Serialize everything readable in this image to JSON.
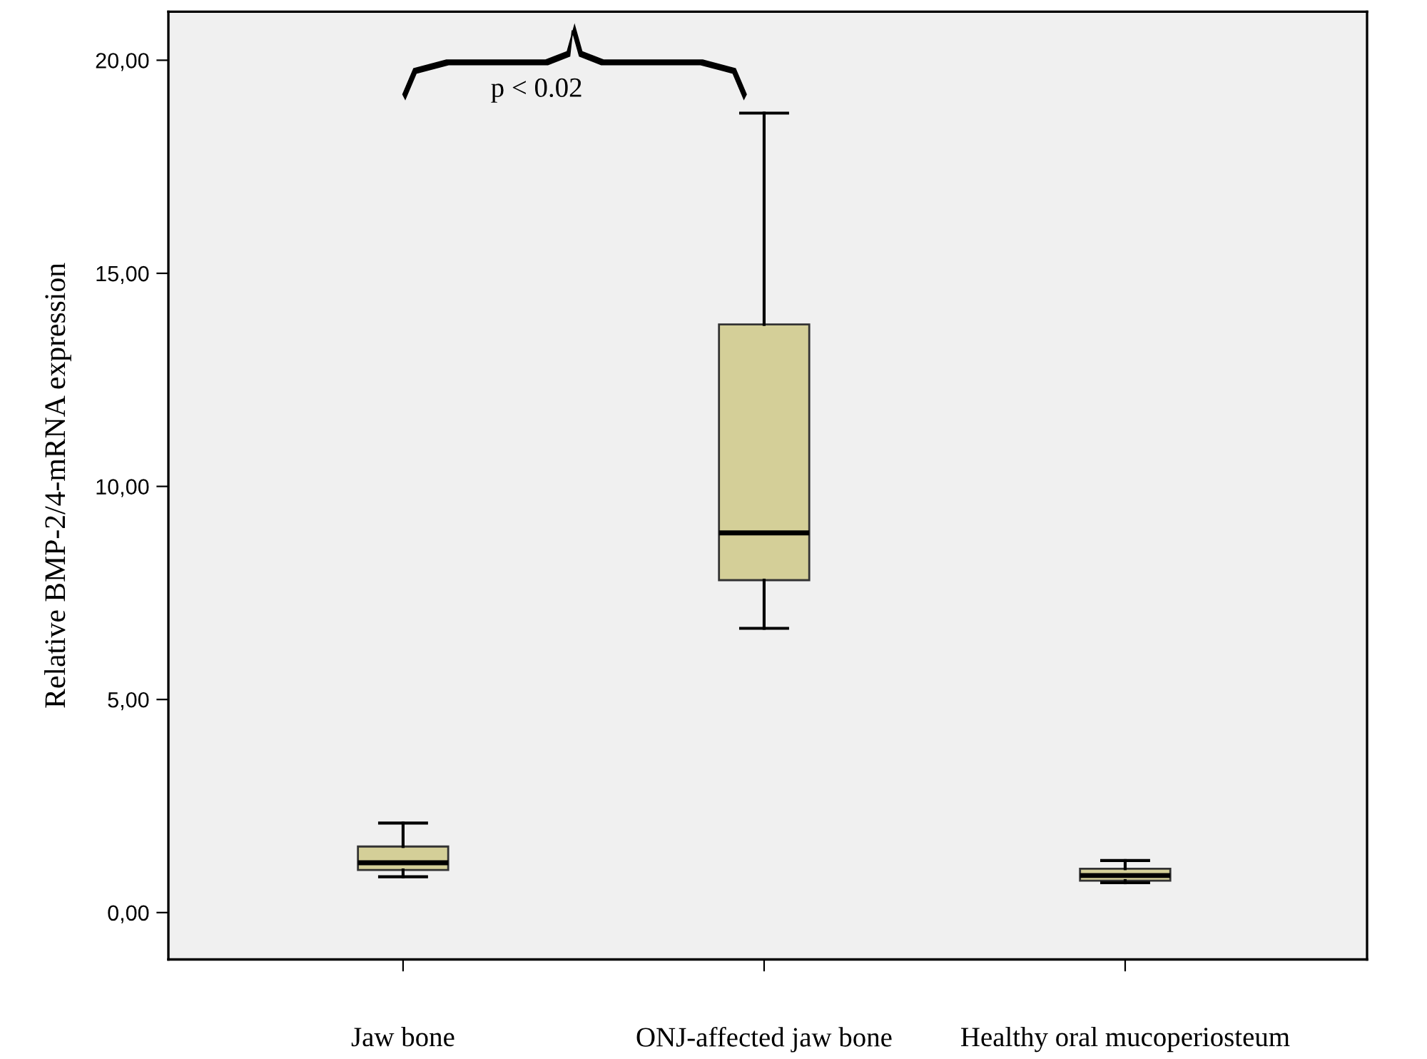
{
  "chart_data": {
    "type": "box",
    "ylabel": "Relative BMP-2/4-mRNA expression",
    "categories": [
      "Jaw bone",
      "ONJ-affected jaw bone",
      "Healthy oral mucoperiosteum"
    ],
    "boxes": [
      {
        "low": 0.84,
        "q1": 1.0,
        "median": 1.17,
        "q3": 1.55,
        "high": 2.1
      },
      {
        "low": 6.67,
        "q1": 7.8,
        "median": 8.91,
        "q3": 13.8,
        "high": 18.76
      },
      {
        "low": 0.7,
        "q1": 0.75,
        "median": 0.87,
        "q3": 1.03,
        "high": 1.22
      }
    ],
    "color": "#d4cf98",
    "ylim": [
      -1.1,
      21.14
    ],
    "yticks": [
      {
        "value": 0,
        "label": "0,00"
      },
      {
        "value": 5,
        "label": "5,00"
      },
      {
        "value": 10,
        "label": "10,00"
      },
      {
        "value": 15,
        "label": "15,00"
      },
      {
        "value": 20,
        "label": "20,00"
      }
    ],
    "grid": false,
    "annotations": [
      "p < 0.02"
    ]
  }
}
